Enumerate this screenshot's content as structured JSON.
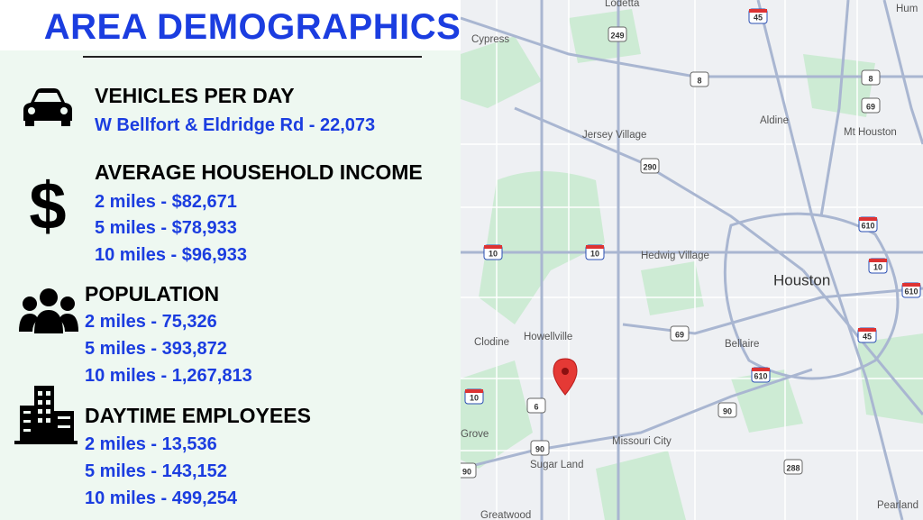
{
  "header": {
    "title": "AREA DEMOGRAPHICS"
  },
  "sections": [
    {
      "heading": "VEHICLES PER DAY",
      "lines": [
        "W Bellfort & Eldridge Rd - 22,073"
      ]
    },
    {
      "heading": "AVERAGE HOUSEHOLD INCOME",
      "icon": "$",
      "lines": [
        "2 miles - $82,671",
        "5 miles - $78,933",
        "10 miles - $96,933"
      ]
    },
    {
      "heading": "POPULATION",
      "lines": [
        "2 miles - 75,326",
        "5 miles - 393,872",
        "10 miles - 1,267,813"
      ]
    },
    {
      "heading": "DAYTIME EMPLOYEES",
      "lines": [
        "2 miles - 13,536",
        "5 miles - 143,152",
        "10 miles - 499,254"
      ]
    }
  ],
  "map": {
    "places": [
      "Lodetta",
      "Cypress",
      "Aldine",
      "Mt Houston",
      "Jersey Village",
      "Hedwig Village",
      "Houston",
      "Clodine",
      "Howellville",
      "Bellaire",
      "Missouri City",
      "Sugar Land",
      "Pearland",
      "Greatwood",
      "Grove",
      "Hum"
    ],
    "shields": [
      "45",
      "249",
      "8",
      "8",
      "69",
      "290",
      "10",
      "10",
      "610",
      "10",
      "610",
      "69",
      "45",
      "610",
      "90",
      "6",
      "90",
      "288",
      "90",
      "10"
    ]
  }
}
